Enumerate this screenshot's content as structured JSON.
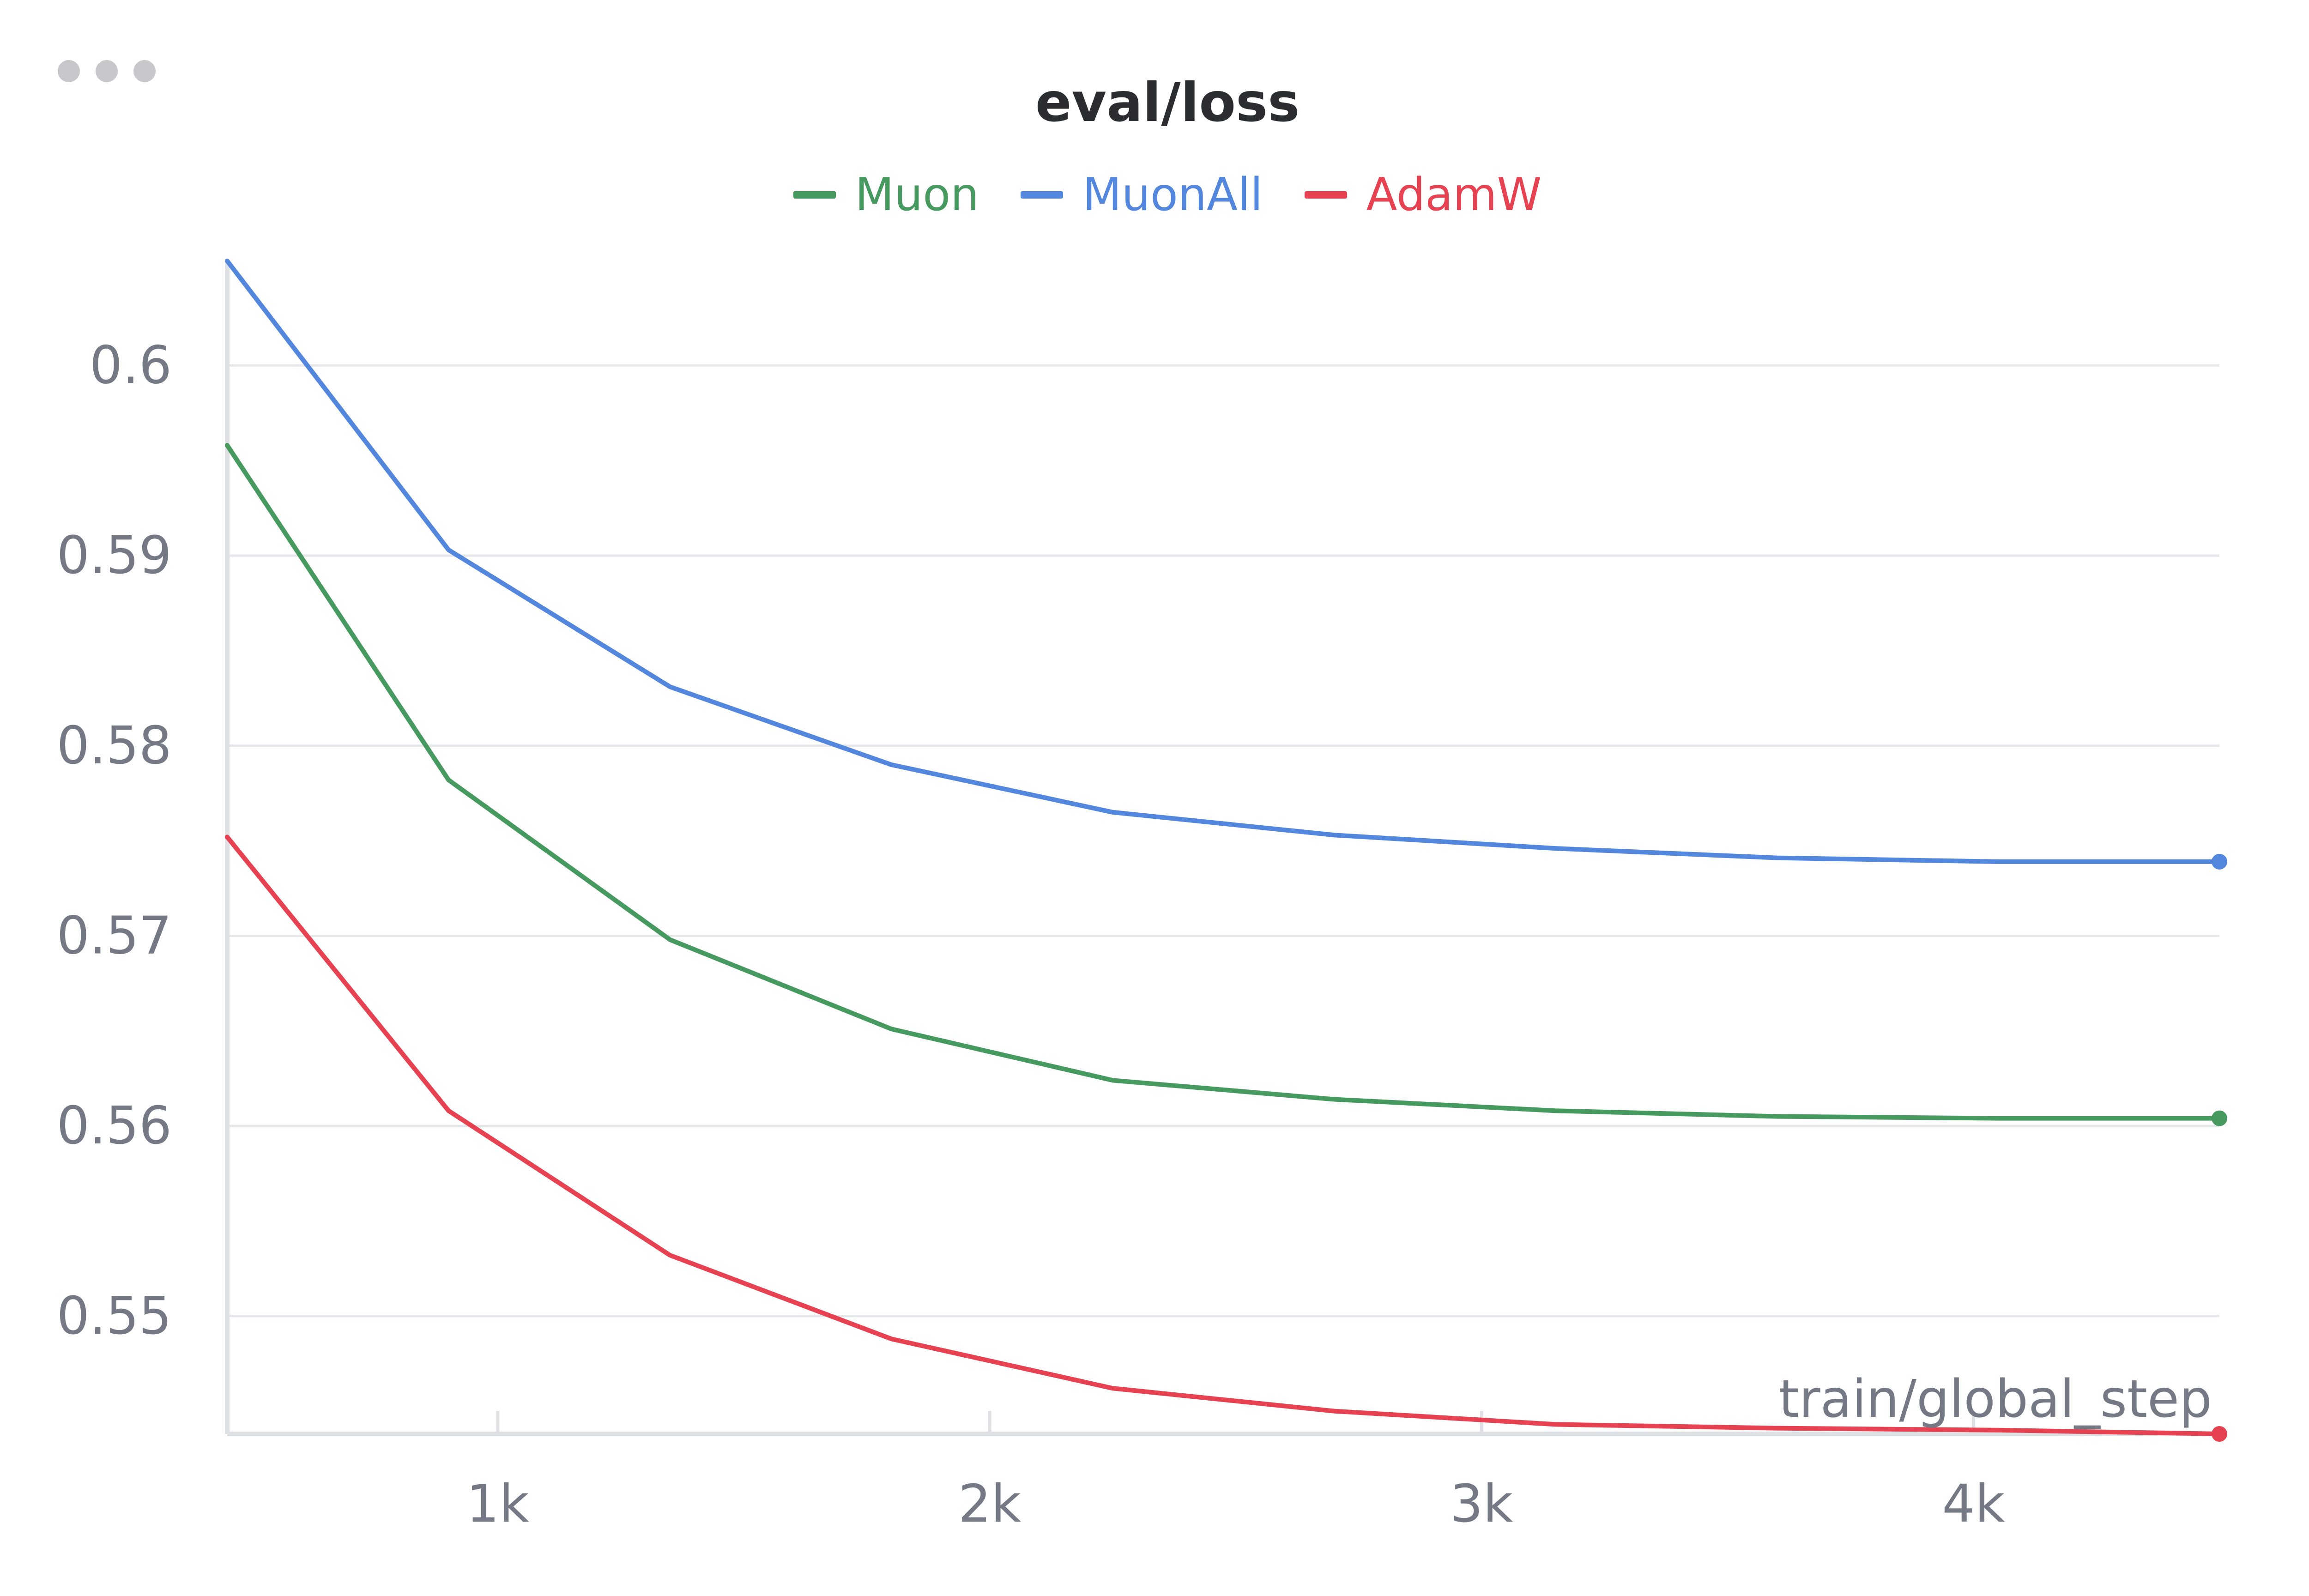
{
  "menu": {
    "icon": "more-horizontal-icon"
  },
  "chart_data": {
    "type": "line",
    "title": "eval/loss",
    "xlabel": "train/global_step",
    "ylabel": "",
    "xlim": [
      450,
      4500
    ],
    "ylim": [
      0.5438,
      0.6055
    ],
    "x_ticks": [
      1000,
      2000,
      3000,
      4000
    ],
    "x_tick_labels": [
      "1k",
      "2k",
      "3k",
      "4k"
    ],
    "y_ticks": [
      0.55,
      0.56,
      0.57,
      0.58,
      0.59,
      0.6
    ],
    "y_tick_labels": [
      "0.55",
      "0.56",
      "0.57",
      "0.58",
      "0.59",
      "0.6"
    ],
    "grid": true,
    "legend_position": "top-center",
    "series": [
      {
        "name": "Muon",
        "color": "#479a5f",
        "x": [
          450,
          900,
          1350,
          1800,
          2250,
          2700,
          3150,
          3600,
          4050,
          4500
        ],
        "y": [
          0.5958,
          0.5782,
          0.5698,
          0.5651,
          0.5624,
          0.5614,
          0.5608,
          0.5605,
          0.5604,
          0.5604
        ]
      },
      {
        "name": "MuonAll",
        "color": "#5387dd",
        "x": [
          450,
          900,
          1350,
          1800,
          2250,
          2700,
          3150,
          3600,
          4050,
          4500
        ],
        "y": [
          0.6055,
          0.5903,
          0.5831,
          0.579,
          0.5765,
          0.5753,
          0.5746,
          0.5741,
          0.5739,
          0.5739
        ]
      },
      {
        "name": "AdamW",
        "color": "#e74252",
        "x": [
          450,
          900,
          1350,
          1800,
          2250,
          2700,
          3150,
          3600,
          4050,
          4500
        ],
        "y": [
          0.5752,
          0.5608,
          0.5532,
          0.5488,
          0.5462,
          0.545,
          0.5443,
          0.5441,
          0.544,
          0.5438
        ]
      }
    ]
  }
}
